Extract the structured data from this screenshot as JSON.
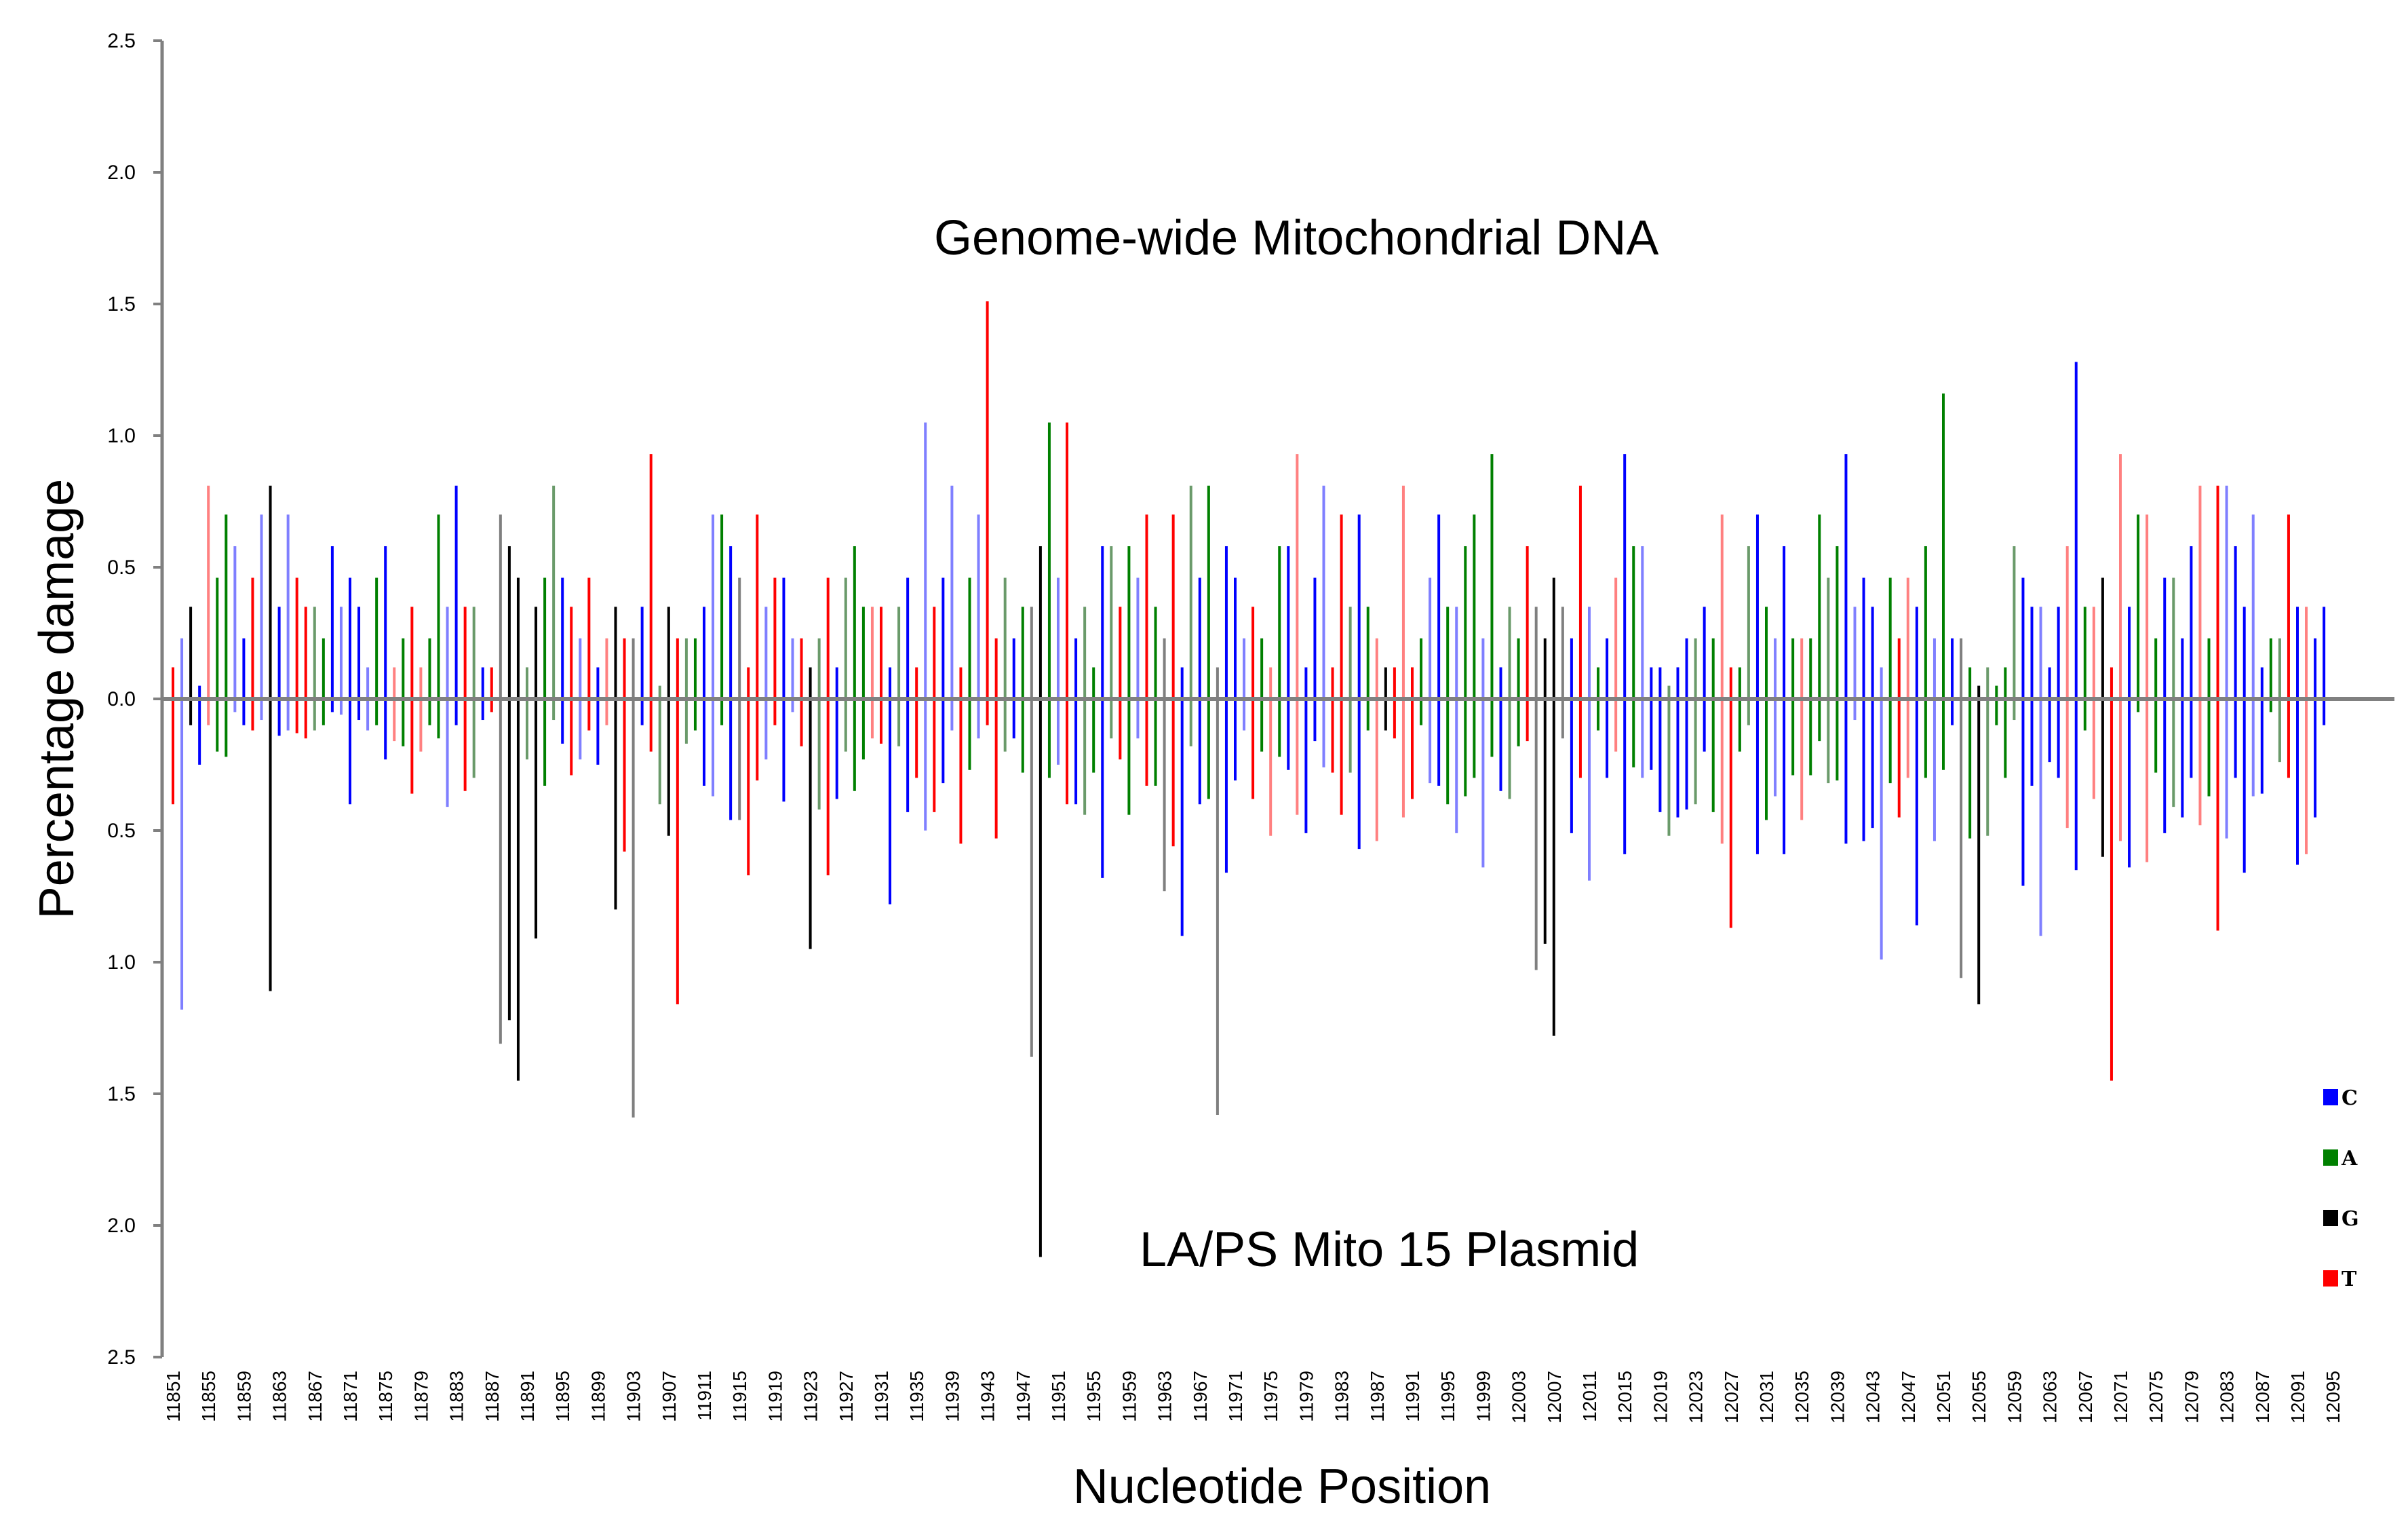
{
  "chart_data": {
    "type": "bar",
    "subtype": "mirrored-bar",
    "xlabel": "Nucleotide Position",
    "ylabel": "Percentage damage",
    "annotation_top": "Genome-wide Mitochondrial DNA",
    "annotation_bottom": "LA/PS Mito 15 Plasmid",
    "ylim": [
      -2.5,
      2.5
    ],
    "y_ticks": [
      2.5,
      2.0,
      1.5,
      1.0,
      0.5,
      0.0,
      -0.5,
      -1.0,
      -1.5,
      -2.0,
      -2.5
    ],
    "y_tick_labels": [
      "2.5",
      "2.0",
      "1.5",
      "1.0",
      "0.5",
      "0.0",
      "0.5",
      "1.0",
      "1.5",
      "2.0",
      "2.5"
    ],
    "x_start": 11851,
    "x_end": 12095,
    "x_tick_step": 4,
    "legend_placement": "right",
    "legend": [
      {
        "name": "C",
        "color": "#0000ff"
      },
      {
        "name": "A",
        "color": "#008000"
      },
      {
        "name": "G",
        "color": "#000000"
      },
      {
        "name": "T",
        "color": "#ff0000"
      }
    ],
    "points": [
      [
        "T",
        0.12,
        -0.4
      ],
      [
        "C",
        0.23,
        -1.18
      ],
      [
        "G",
        0.35,
        -0.1
      ],
      [
        "C",
        0.05,
        -0.25
      ],
      [
        "T",
        0.81,
        -0.1
      ],
      [
        "A",
        0.46,
        -0.2
      ],
      [
        "A",
        0.7,
        -0.22
      ],
      [
        "C",
        0.58,
        -0.05
      ],
      [
        "C",
        0.23,
        -0.1
      ],
      [
        "T",
        0.46,
        -0.12
      ],
      [
        "C",
        0.7,
        -0.08
      ],
      [
        "G",
        0.81,
        -1.11
      ],
      [
        "C",
        0.35,
        -0.14
      ],
      [
        "C",
        0.7,
        -0.12
      ],
      [
        "T",
        0.46,
        -0.13
      ],
      [
        "T",
        0.35,
        -0.15
      ],
      [
        "A",
        0.35,
        -0.12
      ],
      [
        "A",
        0.23,
        -0.1
      ],
      [
        "C",
        0.58,
        -0.05
      ],
      [
        "C",
        0.35,
        -0.06
      ],
      [
        "C",
        0.46,
        -0.4
      ],
      [
        "C",
        0.35,
        -0.08
      ],
      [
        "C",
        0.12,
        -0.12
      ],
      [
        "A",
        0.46,
        -0.1
      ],
      [
        "C",
        0.58,
        -0.23
      ],
      [
        "T",
        0.12,
        -0.16
      ],
      [
        "A",
        0.23,
        -0.18
      ],
      [
        "T",
        0.35,
        -0.36
      ],
      [
        "T",
        0.12,
        -0.2
      ],
      [
        "A",
        0.23,
        -0.1
      ],
      [
        "A",
        0.7,
        -0.15
      ],
      [
        "C",
        0.35,
        -0.41
      ],
      [
        "C",
        0.81,
        -0.1
      ],
      [
        "T",
        0.35,
        -0.35
      ],
      [
        "A",
        0.35,
        -0.3
      ],
      [
        "C",
        0.12,
        -0.08
      ],
      [
        "T",
        0.12,
        -0.05
      ],
      [
        "G",
        0.7,
        -1.31
      ],
      [
        "G",
        0.58,
        -1.22
      ],
      [
        "G",
        0.46,
        -1.45
      ],
      [
        "A",
        0.12,
        -0.23
      ],
      [
        "G",
        0.35,
        -0.91
      ],
      [
        "A",
        0.46,
        -0.33
      ],
      [
        "A",
        0.81,
        -0.08
      ],
      [
        "C",
        0.46,
        -0.17
      ],
      [
        "T",
        0.35,
        -0.29
      ],
      [
        "C",
        0.23,
        -0.23
      ],
      [
        "T",
        0.46,
        -0.12
      ],
      [
        "C",
        0.12,
        -0.25
      ],
      [
        "T",
        0.23,
        -0.1
      ],
      [
        "G",
        0.35,
        -0.8
      ],
      [
        "T",
        0.23,
        -0.58
      ],
      [
        "G",
        0.23,
        -1.59
      ],
      [
        "C",
        0.35,
        -0.1
      ],
      [
        "T",
        0.93,
        -0.2
      ],
      [
        "A",
        0.05,
        -0.4
      ],
      [
        "G",
        0.35,
        -0.52
      ],
      [
        "T",
        0.23,
        -1.16
      ],
      [
        "A",
        0.23,
        -0.17
      ],
      [
        "A",
        0.23,
        -0.12
      ],
      [
        "C",
        0.35,
        -0.33
      ],
      [
        "C",
        0.7,
        -0.37
      ],
      [
        "A",
        0.7,
        -0.1
      ],
      [
        "C",
        0.58,
        -0.46
      ],
      [
        "G",
        0.46,
        -0.46
      ],
      [
        "T",
        0.12,
        -0.67
      ],
      [
        "T",
        0.7,
        -0.31
      ],
      [
        "C",
        0.35,
        -0.23
      ],
      [
        "T",
        0.46,
        -0.1
      ],
      [
        "C",
        0.46,
        -0.39
      ],
      [
        "C",
        0.23,
        -0.05
      ],
      [
        "T",
        0.23,
        -0.18
      ],
      [
        "G",
        0.12,
        -0.95
      ],
      [
        "A",
        0.23,
        -0.42
      ],
      [
        "T",
        0.46,
        -0.67
      ],
      [
        "C",
        0.12,
        -0.38
      ],
      [
        "A",
        0.46,
        -0.2
      ],
      [
        "A",
        0.58,
        -0.35
      ],
      [
        "A",
        0.35,
        -0.23
      ],
      [
        "T",
        0.35,
        -0.15
      ],
      [
        "T",
        0.35,
        -0.17
      ],
      [
        "C",
        0.12,
        -0.78
      ],
      [
        "A",
        0.35,
        -0.18
      ],
      [
        "C",
        0.46,
        -0.43
      ],
      [
        "T",
        0.12,
        -0.3
      ],
      [
        "C",
        1.05,
        -0.5
      ],
      [
        "T",
        0.35,
        -0.43
      ],
      [
        "C",
        0.46,
        -0.32
      ],
      [
        "C",
        0.81,
        -0.12
      ],
      [
        "T",
        0.12,
        -0.55
      ],
      [
        "A",
        0.46,
        -0.27
      ],
      [
        "C",
        0.7,
        -0.15
      ],
      [
        "T",
        1.51,
        -0.1
      ],
      [
        "T",
        0.23,
        -0.53
      ],
      [
        "A",
        0.46,
        -0.2
      ],
      [
        "C",
        0.23,
        -0.15
      ],
      [
        "A",
        0.35,
        -0.28
      ],
      [
        "G",
        0.35,
        -1.36
      ],
      [
        "G",
        0.58,
        -2.12
      ],
      [
        "A",
        1.05,
        -0.3
      ],
      [
        "C",
        0.46,
        -0.25
      ],
      [
        "T",
        1.05,
        -0.4
      ],
      [
        "C",
        0.23,
        -0.4
      ],
      [
        "A",
        0.35,
        -0.44
      ],
      [
        "A",
        0.12,
        -0.28
      ],
      [
        "C",
        0.58,
        -0.68
      ],
      [
        "A",
        0.58,
        -0.15
      ],
      [
        "T",
        0.35,
        -0.23
      ],
      [
        "A",
        0.58,
        -0.44
      ],
      [
        "C",
        0.46,
        -0.15
      ],
      [
        "T",
        0.7,
        -0.33
      ],
      [
        "A",
        0.35,
        -0.33
      ],
      [
        "G",
        0.23,
        -0.73
      ],
      [
        "T",
        0.7,
        -0.56
      ],
      [
        "C",
        0.12,
        -0.9
      ],
      [
        "A",
        0.81,
        -0.18
      ],
      [
        "C",
        0.46,
        -0.4
      ],
      [
        "A",
        0.81,
        -0.38
      ],
      [
        "G",
        0.12,
        -1.58
      ],
      [
        "C",
        0.58,
        -0.66
      ],
      [
        "C",
        0.46,
        -0.31
      ],
      [
        "C",
        0.23,
        -0.12
      ],
      [
        "T",
        0.35,
        -0.38
      ],
      [
        "A",
        0.23,
        -0.2
      ],
      [
        "T",
        0.12,
        -0.52
      ],
      [
        "A",
        0.58,
        -0.22
      ],
      [
        "C",
        0.58,
        -0.27
      ],
      [
        "T",
        0.93,
        -0.44
      ],
      [
        "C",
        0.12,
        -0.51
      ],
      [
        "C",
        0.46,
        -0.16
      ],
      [
        "C",
        0.81,
        -0.26
      ],
      [
        "T",
        0.12,
        -0.28
      ],
      [
        "T",
        0.7,
        -0.44
      ],
      [
        "A",
        0.35,
        -0.28
      ],
      [
        "C",
        0.7,
        -0.57
      ],
      [
        "A",
        0.35,
        -0.12
      ],
      [
        "T",
        0.23,
        -0.54
      ],
      [
        "G",
        0.12,
        -0.12
      ],
      [
        "T",
        0.12,
        -0.15
      ],
      [
        "T",
        0.81,
        -0.45
      ],
      [
        "T",
        0.12,
        -0.38
      ],
      [
        "A",
        0.23,
        -0.1
      ],
      [
        "C",
        0.46,
        -0.32
      ],
      [
        "C",
        0.7,
        -0.33
      ],
      [
        "A",
        0.35,
        -0.4
      ],
      [
        "C",
        0.35,
        -0.51
      ],
      [
        "A",
        0.58,
        -0.37
      ],
      [
        "A",
        0.7,
        -0.3
      ],
      [
        "C",
        0.23,
        -0.64
      ],
      [
        "A",
        0.93,
        -0.22
      ],
      [
        "C",
        0.12,
        -0.35
      ],
      [
        "A",
        0.35,
        -0.38
      ],
      [
        "A",
        0.23,
        -0.18
      ],
      [
        "T",
        0.58,
        -0.16
      ],
      [
        "G",
        0.35,
        -1.03
      ],
      [
        "G",
        0.23,
        -0.93
      ],
      [
        "G",
        0.46,
        -1.28
      ],
      [
        "G",
        0.35,
        -0.15
      ],
      [
        "C",
        0.23,
        -0.51
      ],
      [
        "T",
        0.81,
        -0.3
      ],
      [
        "C",
        0.35,
        -0.69
      ],
      [
        "A",
        0.12,
        -0.12
      ],
      [
        "C",
        0.23,
        -0.3
      ],
      [
        "T",
        0.46,
        -0.2
      ],
      [
        "C",
        0.93,
        -0.59
      ],
      [
        "A",
        0.58,
        -0.26
      ],
      [
        "C",
        0.58,
        -0.3
      ],
      [
        "C",
        0.12,
        -0.27
      ],
      [
        "C",
        0.12,
        -0.43
      ],
      [
        "A",
        0.05,
        -0.52
      ],
      [
        "C",
        0.12,
        -0.45
      ],
      [
        "C",
        0.23,
        -0.42
      ],
      [
        "A",
        0.23,
        -0.4
      ],
      [
        "C",
        0.35,
        -0.2
      ],
      [
        "A",
        0.23,
        -0.43
      ],
      [
        "T",
        0.7,
        -0.55
      ],
      [
        "T",
        0.12,
        -0.87
      ],
      [
        "A",
        0.12,
        -0.2
      ],
      [
        "A",
        0.58,
        -0.1
      ],
      [
        "C",
        0.7,
        -0.59
      ],
      [
        "A",
        0.35,
        -0.46
      ],
      [
        "C",
        0.23,
        -0.37
      ],
      [
        "C",
        0.58,
        -0.59
      ],
      [
        "A",
        0.23,
        -0.29
      ],
      [
        "T",
        0.23,
        -0.46
      ],
      [
        "A",
        0.23,
        -0.29
      ],
      [
        "A",
        0.7,
        -0.16
      ],
      [
        "A",
        0.46,
        -0.32
      ],
      [
        "A",
        0.58,
        -0.31
      ],
      [
        "C",
        0.93,
        -0.55
      ],
      [
        "C",
        0.35,
        -0.08
      ],
      [
        "C",
        0.46,
        -0.54
      ],
      [
        "C",
        0.35,
        -0.49
      ],
      [
        "C",
        0.12,
        -0.99
      ],
      [
        "A",
        0.46,
        -0.32
      ],
      [
        "T",
        0.23,
        -0.45
      ],
      [
        "T",
        0.46,
        -0.3
      ],
      [
        "C",
        0.35,
        -0.86
      ],
      [
        "A",
        0.58,
        -0.3
      ],
      [
        "C",
        0.23,
        -0.54
      ],
      [
        "A",
        1.16,
        -0.27
      ],
      [
        "C",
        0.23,
        -0.1
      ],
      [
        "G",
        0.23,
        -1.06
      ],
      [
        "A",
        0.12,
        -0.53
      ],
      [
        "G",
        0.05,
        -1.16
      ],
      [
        "A",
        0.12,
        -0.52
      ],
      [
        "A",
        0.05,
        -0.1
      ],
      [
        "A",
        0.12,
        -0.3
      ],
      [
        "A",
        0.58,
        -0.08
      ],
      [
        "C",
        0.46,
        -0.71
      ],
      [
        "C",
        0.35,
        -0.33
      ],
      [
        "C",
        0.35,
        -0.9
      ],
      [
        "C",
        0.12,
        -0.24
      ],
      [
        "C",
        0.35,
        -0.3
      ],
      [
        "T",
        0.58,
        -0.49
      ],
      [
        "C",
        1.28,
        -0.65
      ],
      [
        "A",
        0.35,
        -0.12
      ],
      [
        "T",
        0.35,
        -0.38
      ],
      [
        "G",
        0.46,
        -0.6
      ],
      [
        "T",
        0.12,
        -1.45
      ],
      [
        "T",
        0.93,
        -0.54
      ],
      [
        "C",
        0.35,
        -0.64
      ],
      [
        "A",
        0.7,
        -0.05
      ],
      [
        "T",
        0.7,
        -0.62
      ],
      [
        "A",
        0.23,
        -0.28
      ],
      [
        "C",
        0.46,
        -0.51
      ],
      [
        "A",
        0.46,
        -0.41
      ],
      [
        "C",
        0.23,
        -0.45
      ],
      [
        "C",
        0.58,
        -0.3
      ],
      [
        "T",
        0.81,
        -0.48
      ],
      [
        "A",
        0.23,
        -0.37
      ],
      [
        "T",
        0.81,
        -0.88
      ],
      [
        "C",
        0.81,
        -0.53
      ],
      [
        "C",
        0.58,
        -0.3
      ],
      [
        "C",
        0.35,
        -0.66
      ],
      [
        "C",
        0.7,
        -0.37
      ],
      [
        "C",
        0.12,
        -0.36
      ],
      [
        "A",
        0.23,
        -0.05
      ],
      [
        "A",
        0.23,
        -0.24
      ],
      [
        "T",
        0.7,
        -0.3
      ],
      [
        "C",
        0.35,
        -0.63
      ],
      [
        "T",
        0.35,
        -0.59
      ],
      [
        "C",
        0.23,
        -0.45
      ],
      [
        "C",
        0.35,
        -0.1
      ]
    ]
  }
}
